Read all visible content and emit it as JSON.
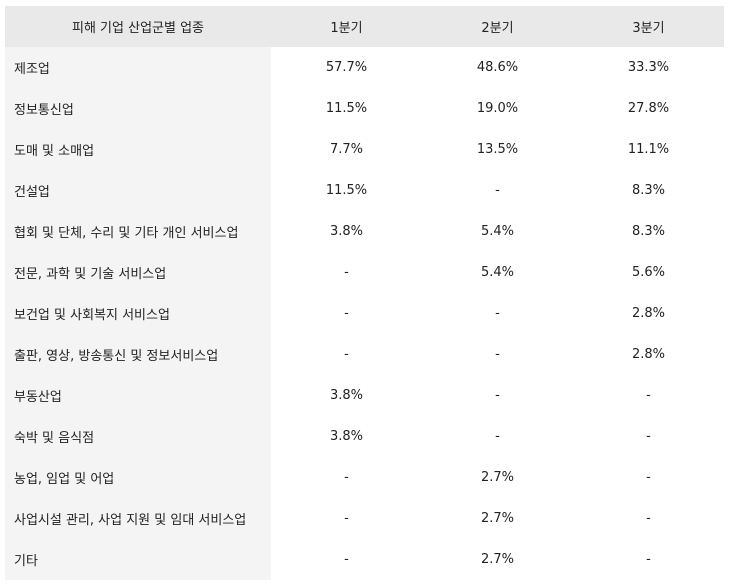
{
  "table": {
    "headers": [
      "피해 기업 산업군별 업종",
      "1분기",
      "2분기",
      "3분기"
    ],
    "rows": [
      [
        "제조업",
        "57.7%",
        "48.6%",
        "33.3%"
      ],
      [
        "정보통신업",
        "11.5%",
        "19.0%",
        "27.8%"
      ],
      [
        "도매 및 소매업",
        "7.7%",
        "13.5%",
        "11.1%"
      ],
      [
        "건설업",
        "11.5%",
        "-",
        "8.3%"
      ],
      [
        "협회 및 단체, 수리 및 기타 개인 서비스업",
        "3.8%",
        "5.4%",
        "8.3%"
      ],
      [
        "전문, 과학 및 기술 서비스업",
        "-",
        "5.4%",
        "5.6%"
      ],
      [
        "보건업 및 사회복지 서비스업",
        "-",
        "-",
        "2.8%"
      ],
      [
        "출판, 영상, 방송통신 및 정보서비스업",
        "-",
        "-",
        "2.8%"
      ],
      [
        "부동산업",
        "3.8%",
        "-",
        "-"
      ],
      [
        "숙박 및 음식점",
        "3.8%",
        "-",
        "-"
      ],
      [
        "농업, 임업 및 어업",
        "-",
        "2.7%",
        "-"
      ],
      [
        "사업시설 관리, 사업 지원 및 임대 서비스업",
        "-",
        "2.7%",
        "-"
      ],
      [
        "기타",
        "-",
        "2.7%",
        "-"
      ]
    ]
  },
  "colors": {
    "header_bg": "#e9e9e9",
    "rowhead_bg": "#f4f4f4",
    "text": "#222222"
  }
}
